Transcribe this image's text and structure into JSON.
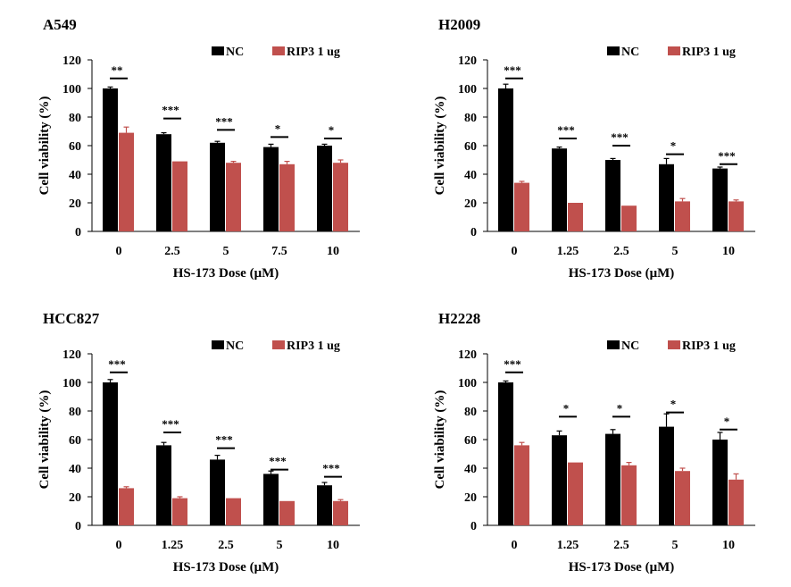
{
  "colors": {
    "nc": "#000000",
    "rip3": "#c0504d",
    "axis": "#000000"
  },
  "chart_data": [
    {
      "type": "bar",
      "title": "A549",
      "xlabel": "HS-173 Dose (μM)",
      "ylabel": "Cell viability (%)",
      "ylim": [
        0,
        120
      ],
      "yticks": [
        0,
        20,
        40,
        60,
        80,
        100,
        120
      ],
      "legend_position": "top-right",
      "categories": [
        "0",
        "2.5",
        "5",
        "7.5",
        "10"
      ],
      "series": [
        {
          "name": "NC",
          "values": [
            100,
            68,
            62,
            59,
            60
          ],
          "errors": [
            1,
            1,
            1,
            2,
            1
          ]
        },
        {
          "name": "RIP3 1 ug",
          "values": [
            69,
            49,
            48,
            47,
            48
          ],
          "errors": [
            4,
            0,
            1,
            2,
            2
          ]
        }
      ],
      "significance": [
        "**",
        "***",
        "***",
        "*",
        "*"
      ],
      "sig_bar_y": [
        107,
        79,
        71,
        66,
        65
      ]
    },
    {
      "type": "bar",
      "title": "H2009",
      "xlabel": "HS-173 Dose (μM)",
      "ylabel": "Cell viability (%)",
      "ylim": [
        0,
        120
      ],
      "yticks": [
        0,
        20,
        40,
        60,
        80,
        100,
        120
      ],
      "legend_position": "top-right",
      "categories": [
        "0",
        "1.25",
        "2.5",
        "5",
        "10"
      ],
      "series": [
        {
          "name": "NC",
          "values": [
            100,
            58,
            50,
            47,
            44
          ],
          "errors": [
            3,
            1,
            1,
            4,
            1
          ]
        },
        {
          "name": "RIP3 1 ug",
          "values": [
            34,
            20,
            18,
            21,
            21
          ],
          "errors": [
            1,
            0,
            0,
            2,
            1
          ]
        }
      ],
      "significance": [
        "***",
        "***",
        "***",
        "*",
        "***"
      ],
      "sig_bar_y": [
        107,
        65,
        60,
        54,
        47
      ]
    },
    {
      "type": "bar",
      "title": "HCC827",
      "xlabel": "HS-173 Dose (μM)",
      "ylabel": "Cell viability (%)",
      "ylim": [
        0,
        120
      ],
      "yticks": [
        0,
        20,
        40,
        60,
        80,
        100,
        120
      ],
      "legend_position": "top-right",
      "categories": [
        "0",
        "1.25",
        "2.5",
        "5",
        "10"
      ],
      "series": [
        {
          "name": "NC",
          "values": [
            100,
            56,
            46,
            36,
            28
          ],
          "errors": [
            2,
            2,
            3,
            2,
            2
          ]
        },
        {
          "name": "RIP3 1 ug",
          "values": [
            26,
            19,
            19,
            17,
            17
          ],
          "errors": [
            1,
            1,
            0,
            0,
            1
          ]
        }
      ],
      "significance": [
        "***",
        "***",
        "***",
        "***",
        "***"
      ],
      "sig_bar_y": [
        107,
        65,
        54,
        39,
        34
      ]
    },
    {
      "type": "bar",
      "title": "H2228",
      "xlabel": "HS-173 Dose (μM)",
      "ylabel": "Cell viability (%)",
      "ylim": [
        0,
        120
      ],
      "yticks": [
        0,
        20,
        40,
        60,
        80,
        100,
        120
      ],
      "legend_position": "top-right",
      "categories": [
        "0",
        "1.25",
        "2.5",
        "5",
        "10"
      ],
      "series": [
        {
          "name": "NC",
          "values": [
            100,
            63,
            64,
            69,
            60
          ],
          "errors": [
            1,
            3,
            3,
            9,
            5
          ]
        },
        {
          "name": "RIP3 1 ug",
          "values": [
            56,
            44,
            42,
            38,
            32
          ],
          "errors": [
            2,
            0,
            2,
            2,
            4
          ]
        }
      ],
      "significance": [
        "***",
        "*",
        "*",
        "*",
        "*"
      ],
      "sig_bar_y": [
        107,
        76,
        76,
        79,
        67
      ]
    }
  ]
}
